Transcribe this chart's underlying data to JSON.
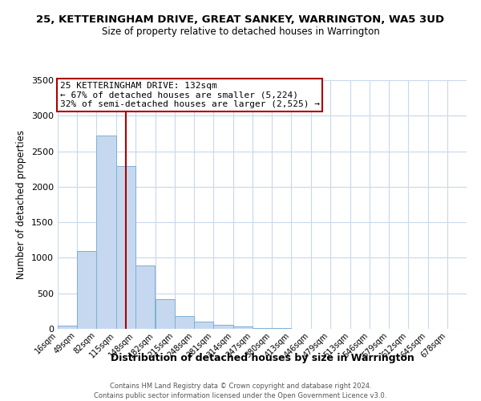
{
  "title": "25, KETTERINGHAM DRIVE, GREAT SANKEY, WARRINGTON, WA5 3UD",
  "subtitle": "Size of property relative to detached houses in Warrington",
  "xlabel": "Distribution of detached houses by size in Warrington",
  "ylabel": "Number of detached properties",
  "bar_color": "#c5d8f0",
  "bar_edge_color": "#7fafd4",
  "background_color": "#ffffff",
  "grid_color": "#c8d8eb",
  "annotation_box_color": "#aa0000",
  "vline_color": "#aa0000",
  "property_size": 132,
  "bin_starts": [
    16,
    49,
    82,
    115,
    148,
    182,
    215,
    248,
    281,
    314,
    347,
    380,
    413,
    446,
    479,
    513,
    546,
    579,
    612,
    645,
    678
  ],
  "bin_width": 33,
  "values": [
    50,
    1100,
    2720,
    2290,
    890,
    420,
    185,
    105,
    55,
    30,
    15,
    8,
    4,
    2,
    1,
    1,
    0,
    0,
    0,
    0,
    0
  ],
  "categories": [
    "16sqm",
    "49sqm",
    "82sqm",
    "115sqm",
    "148sqm",
    "182sqm",
    "215sqm",
    "248sqm",
    "281sqm",
    "314sqm",
    "347sqm",
    "380sqm",
    "413sqm",
    "446sqm",
    "479sqm",
    "513sqm",
    "546sqm",
    "579sqm",
    "612sqm",
    "645sqm",
    "678sqm"
  ],
  "ylim": [
    0,
    3500
  ],
  "yticks": [
    0,
    500,
    1000,
    1500,
    2000,
    2500,
    3000,
    3500
  ],
  "annotation_title": "25 KETTERINGHAM DRIVE: 132sqm",
  "annotation_line1": "← 67% of detached houses are smaller (5,224)",
  "annotation_line2": "32% of semi-detached houses are larger (2,525) →",
  "footer1": "Contains HM Land Registry data © Crown copyright and database right 2024.",
  "footer2": "Contains public sector information licensed under the Open Government Licence v3.0."
}
